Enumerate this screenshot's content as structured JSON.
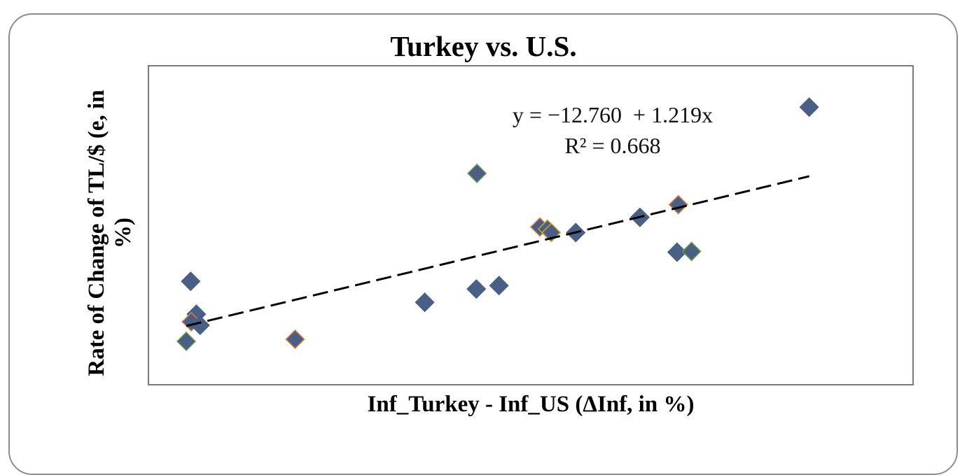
{
  "chart_data": {
    "type": "scatter",
    "title": "Turkey vs. U.S.",
    "xlabel": "Inf_Turkey - Inf_US (ΔInf, in %)",
    "ylabel": "Rate of Change of TL/$ (e, in %)",
    "grid": false,
    "legend": null,
    "axis_ticks_visible": false,
    "trendline": {
      "style": "dashed",
      "equation": "y = −12.760  + 1.219x",
      "r_squared": "R² = 0.668",
      "intercept": -12.76,
      "slope": 1.219,
      "x_range": [
        4.0,
        103.0
      ]
    },
    "xlim": [
      -1.9,
      119.4
    ],
    "ylim": [
      -54.7,
      201.3
    ],
    "points": [
      {
        "x": 103.0,
        "y": 168.5,
        "outline": "#4a5f85"
      },
      {
        "x": 50.2,
        "y": 115.1,
        "outline": "#6a9a4a"
      },
      {
        "x": 82.2,
        "y": 89.9,
        "outline": "#e07b39"
      },
      {
        "x": 76.1,
        "y": 79.7,
        "outline": "#4a5f85"
      },
      {
        "x": 60.2,
        "y": 71.9,
        "outline": "#e07b39"
      },
      {
        "x": 61.4,
        "y": 70.2,
        "outline": "#d4a520"
      },
      {
        "x": 62.0,
        "y": 67.4,
        "outline": "#d4a520"
      },
      {
        "x": 65.9,
        "y": 67.4,
        "outline": "#4a5f85"
      },
      {
        "x": 82.0,
        "y": 51.6,
        "outline": "#4a5f85"
      },
      {
        "x": 84.3,
        "y": 52.2,
        "outline": "#6a9a4a"
      },
      {
        "x": 53.7,
        "y": 24.7,
        "outline": "#4a5f85"
      },
      {
        "x": 50.1,
        "y": 21.9,
        "outline": "#4a5f85"
      },
      {
        "x": 41.9,
        "y": 11.2,
        "outline": "#4a5f85"
      },
      {
        "x": 4.7,
        "y": 28.1,
        "outline": "#4a5f85"
      },
      {
        "x": 5.6,
        "y": 1.6,
        "outline": "#4a5f85"
      },
      {
        "x": 4.8,
        "y": -4.5,
        "outline": "#e07b39"
      },
      {
        "x": 6.2,
        "y": -7.3,
        "outline": "#4a5f85"
      },
      {
        "x": 4.0,
        "y": -20.3,
        "outline": "#6a9a4a"
      },
      {
        "x": 21.3,
        "y": -18.6,
        "outline": "#e07b39"
      }
    ],
    "marker": {
      "shape": "diamond",
      "fill": "#4a5f85"
    }
  },
  "labels": {
    "title": "Turkey vs. U.S.",
    "equation_line1": "y = −12.760  + 1.219x",
    "equation_line2": "R² = 0.668",
    "xlabel": "Inf_Turkey - Inf_US (ΔInf, in %)",
    "ylabel": "Rate of Change of TL/$ (e, in %)"
  }
}
